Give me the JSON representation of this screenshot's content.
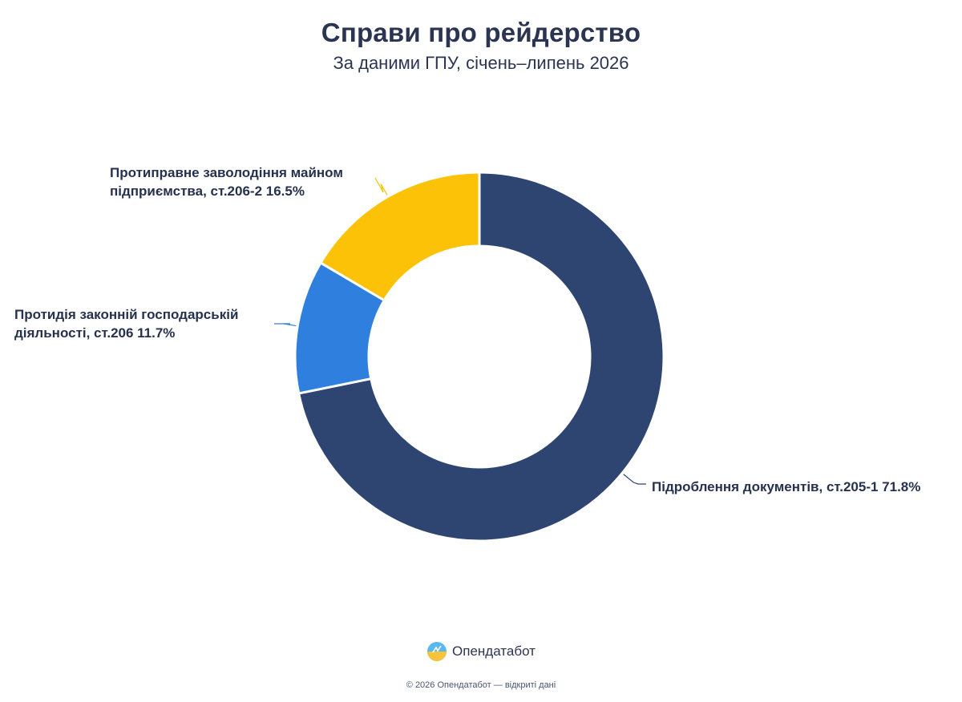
{
  "header": {
    "title": "Справи про рейдерство",
    "subtitle": "За даними ГПУ, січень–липень 2026"
  },
  "chart_data": {
    "type": "pie",
    "title": "Справи про рейдерство",
    "subtitle": "За даними ГПУ, січень–липень 2026",
    "unit": "%",
    "donut": true,
    "slices": [
      {
        "label": "Підроблення документів, ст.205-1 71.8%",
        "value": 71.8,
        "color": "#2e4572"
      },
      {
        "label": "Протидія законній господарській діяльності, ст.206 11.7%",
        "value": 11.7,
        "color": "#2f80de"
      },
      {
        "label": "Протиправне заволодіння майном підприємства, ст.206-2 16.5%",
        "value": 16.5,
        "color": "#fbc207"
      }
    ]
  },
  "brand": {
    "name": "Опендатабот",
    "logo_icon": "opendatabot-logo-icon"
  },
  "footer": {
    "text": "© 2026 Опендатабот — відкриті дані"
  }
}
